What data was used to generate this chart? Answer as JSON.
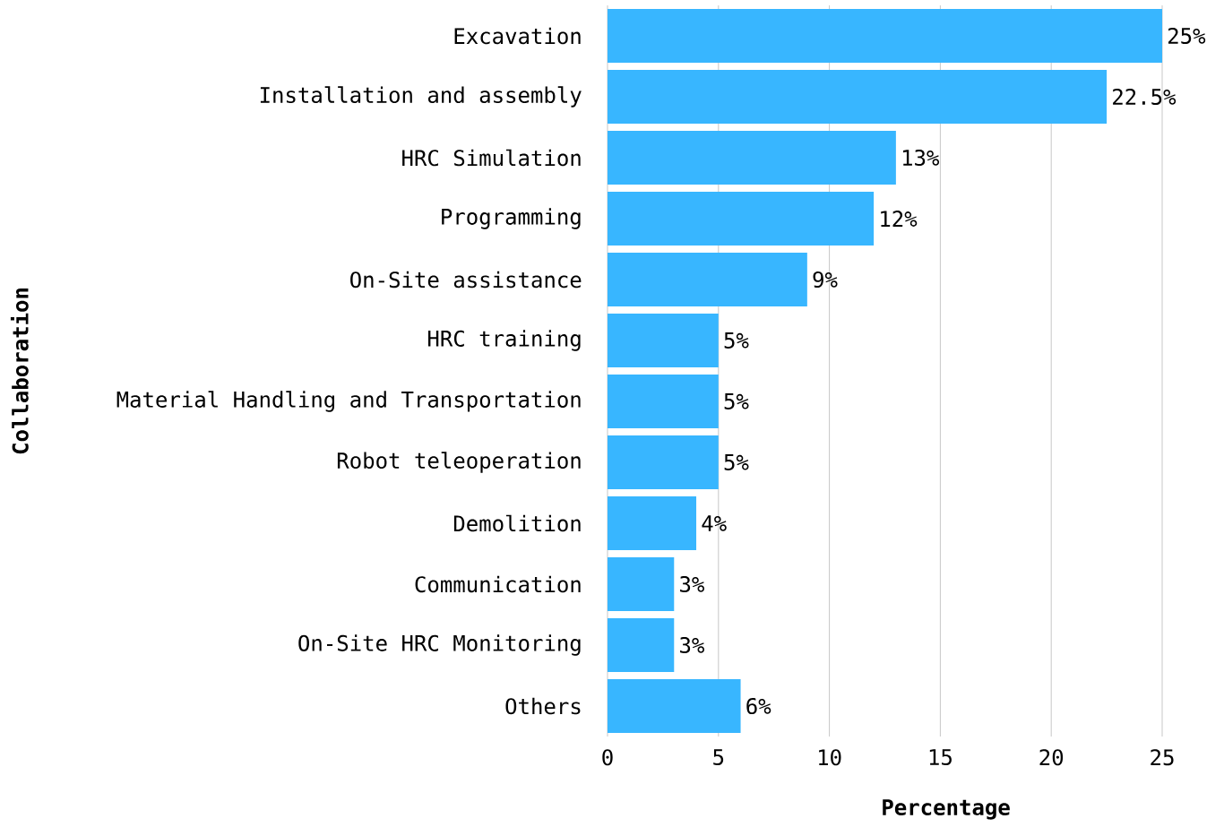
{
  "chart_data": {
    "type": "bar",
    "orientation": "horizontal",
    "categories": [
      "Excavation",
      "Installation and assembly",
      "HRC Simulation",
      "Programming",
      "On-Site assistance",
      "HRC training",
      "Material Handling and Transportation",
      "Robot teleoperation",
      "Demolition",
      "Communication",
      "On-Site HRC Monitoring",
      "Others"
    ],
    "values": [
      25,
      22.5,
      13,
      12,
      9,
      5,
      5,
      5,
      4,
      3,
      3,
      6
    ],
    "value_labels": [
      "25%",
      "22.5%",
      "13%",
      "12%",
      "9%",
      "5%",
      "5%",
      "5%",
      "4%",
      "3%",
      "3%",
      "6%"
    ],
    "color": "#38b6ff",
    "xlabel": "Percentage",
    "ylabel": "Collaboration",
    "xlim": [
      0,
      25
    ],
    "xticks": [
      0,
      5,
      10,
      15,
      20,
      25
    ],
    "grid": "x"
  }
}
